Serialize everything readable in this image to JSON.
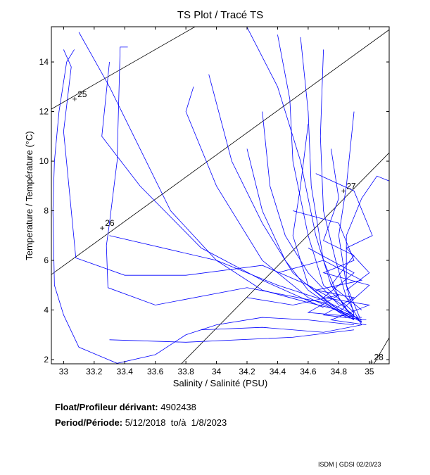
{
  "chart_data": {
    "type": "line",
    "title": "TS Plot / Tracé TS",
    "xlabel": "Salinity / Salinité (PSU)",
    "ylabel": "Temperature / Température (°C)",
    "xlim": [
      32.92,
      35.13
    ],
    "ylim": [
      1.83,
      15.42
    ],
    "xticks": [
      33,
      33.2,
      33.4,
      33.6,
      33.8,
      34,
      34.2,
      34.4,
      34.6,
      34.8,
      35
    ],
    "xtick_labels": [
      "33",
      "33.2",
      "33.4",
      "33.6",
      "33.8",
      "34",
      "34.2",
      "34.4",
      "34.6",
      "34.8",
      "35"
    ],
    "yticks": [
      2,
      4,
      6,
      8,
      10,
      12,
      14
    ],
    "ytick_labels": [
      "2",
      "4",
      "6",
      "8",
      "10",
      "12",
      "14"
    ],
    "grid": false,
    "profile_color": "#0000ff",
    "density_color": "#000000",
    "density_lines": [
      {
        "label": "25",
        "points": [
          [
            32.92,
            12.1
          ],
          [
            33.86,
            15.42
          ]
        ],
        "label_at": [
          33.1,
          12.7
        ]
      },
      {
        "label": "26",
        "points": [
          [
            32.92,
            5.43
          ],
          [
            35.13,
            15.3
          ]
        ],
        "label_at": [
          33.28,
          7.5
        ]
      },
      {
        "label": "27",
        "points": [
          [
            33.77,
            1.83
          ],
          [
            35.13,
            10.34
          ]
        ],
        "label_at": [
          34.86,
          9.0
        ]
      },
      {
        "label": "28",
        "points": [
          [
            35.03,
            1.83
          ],
          [
            35.13,
            2.88
          ]
        ],
        "label_at": [
          35.04,
          2.1
        ]
      }
    ],
    "profiles": [
      [
        [
          33.07,
          14.5
        ],
        [
          33.02,
          14.0
        ],
        [
          32.97,
          12
        ],
        [
          32.94,
          10
        ],
        [
          32.93,
          8
        ],
        [
          32.94,
          5
        ],
        [
          33.0,
          3.8
        ],
        [
          33.1,
          2.5
        ],
        [
          33.35,
          1.85
        ],
        [
          33.6,
          2.2
        ],
        [
          33.8,
          3.0
        ],
        [
          34.0,
          3.4
        ],
        [
          34.3,
          3.7
        ],
        [
          34.6,
          3.6
        ],
        [
          34.9,
          3.4
        ]
      ],
      [
        [
          33.1,
          15.2
        ],
        [
          33.3,
          13
        ],
        [
          33.5,
          10.5
        ],
        [
          33.7,
          8
        ],
        [
          34.0,
          6
        ],
        [
          34.3,
          4.8
        ],
        [
          34.6,
          4.3
        ],
        [
          34.8,
          4.0
        ],
        [
          34.9,
          3.6
        ]
      ],
      [
        [
          33.42,
          14.6
        ],
        [
          33.37,
          14.6
        ],
        [
          33.35,
          10
        ],
        [
          33.3,
          7.5
        ],
        [
          33.28,
          6.6
        ],
        [
          33.29,
          4.9
        ],
        [
          33.6,
          4.2
        ],
        [
          34.2,
          4.9
        ],
        [
          34.7,
          4.3
        ],
        [
          34.9,
          3.6
        ]
      ],
      [
        [
          33.0,
          14.5
        ],
        [
          33.05,
          13.8
        ],
        [
          33.0,
          11.2
        ],
        [
          33.08,
          6.1
        ],
        [
          33.4,
          5.4
        ],
        [
          33.8,
          5.4
        ],
        [
          34.3,
          5.8
        ],
        [
          34.6,
          5.0
        ],
        [
          34.8,
          4.3
        ],
        [
          34.95,
          3.5
        ]
      ],
      [
        [
          33.3,
          7.0
        ],
        [
          34.0,
          6.0
        ],
        [
          34.4,
          5.0
        ],
        [
          34.7,
          4.4
        ],
        [
          34.9,
          3.8
        ]
      ],
      [
        [
          33.3,
          14
        ],
        [
          33.25,
          11
        ],
        [
          33.5,
          9
        ],
        [
          33.9,
          6.5
        ],
        [
          34.3,
          5.2
        ],
        [
          34.7,
          4.1
        ]
      ],
      [
        [
          33.85,
          13
        ],
        [
          33.8,
          12
        ],
        [
          34.0,
          9
        ],
        [
          34.3,
          6
        ],
        [
          34.6,
          4.5
        ],
        [
          34.85,
          3.8
        ]
      ],
      [
        [
          34.2,
          15.4
        ],
        [
          34.4,
          13
        ],
        [
          34.55,
          10
        ],
        [
          34.65,
          7
        ],
        [
          34.75,
          5
        ],
        [
          34.85,
          4
        ],
        [
          34.95,
          3.5
        ]
      ],
      [
        [
          34.55,
          15
        ],
        [
          34.6,
          12
        ],
        [
          34.62,
          9
        ],
        [
          34.7,
          6
        ],
        [
          34.8,
          4.5
        ],
        [
          34.9,
          3.6
        ]
      ],
      [
        [
          34.7,
          14.5
        ],
        [
          34.68,
          11
        ],
        [
          34.7,
          8
        ],
        [
          34.78,
          6
        ],
        [
          34.85,
          4.5
        ],
        [
          34.95,
          3.4
        ]
      ],
      [
        [
          34.9,
          12
        ],
        [
          34.85,
          9
        ],
        [
          34.8,
          7
        ],
        [
          34.85,
          5
        ],
        [
          34.9,
          3.8
        ]
      ],
      [
        [
          35.13,
          9.2
        ],
        [
          35.05,
          9.4
        ],
        [
          34.95,
          8.5
        ],
        [
          34.85,
          7
        ],
        [
          34.85,
          5
        ],
        [
          34.95,
          3.5
        ]
      ],
      [
        [
          34.4,
          15.1
        ],
        [
          34.48,
          12.5
        ],
        [
          34.5,
          10
        ],
        [
          34.6,
          7
        ],
        [
          34.7,
          5
        ],
        [
          34.9,
          3.9
        ]
      ],
      [
        [
          33.9,
          3.2
        ],
        [
          34.3,
          3.3
        ],
        [
          34.7,
          3.1
        ],
        [
          34.95,
          3.4
        ]
      ],
      [
        [
          33.3,
          2.8
        ],
        [
          33.8,
          2.7
        ],
        [
          34.5,
          2.9
        ],
        [
          34.9,
          3.2
        ]
      ],
      [
        [
          34.6,
          11.5
        ],
        [
          34.55,
          9
        ],
        [
          34.5,
          7
        ],
        [
          34.6,
          5
        ],
        [
          34.8,
          4
        ],
        [
          34.95,
          3.6
        ]
      ],
      [
        [
          34.2,
          10.5
        ],
        [
          34.3,
          8
        ],
        [
          34.45,
          6
        ],
        [
          34.6,
          4.8
        ],
        [
          34.85,
          3.7
        ]
      ],
      [
        [
          34.3,
          12
        ],
        [
          34.35,
          9
        ],
        [
          34.45,
          7
        ],
        [
          34.6,
          5.5
        ],
        [
          34.8,
          4.2
        ]
      ],
      [
        [
          33.95,
          13.5
        ],
        [
          34.1,
          10
        ],
        [
          34.3,
          7.5
        ],
        [
          34.5,
          5.5
        ],
        [
          34.75,
          4.2
        ],
        [
          34.95,
          3.5
        ]
      ],
      [
        [
          34.6,
          6.5
        ],
        [
          34.9,
          5.5
        ],
        [
          34.7,
          4.5
        ],
        [
          35.0,
          4.2
        ],
        [
          34.75,
          3.6
        ],
        [
          34.98,
          3.4
        ]
      ],
      [
        [
          34.5,
          8
        ],
        [
          34.8,
          7.5
        ],
        [
          34.9,
          6
        ],
        [
          34.7,
          5.5
        ],
        [
          35.0,
          5
        ],
        [
          34.8,
          3.9
        ]
      ],
      [
        [
          34.4,
          5.5
        ],
        [
          34.7,
          6
        ],
        [
          34.95,
          5.2
        ],
        [
          34.65,
          4.8
        ],
        [
          34.9,
          4.5
        ],
        [
          34.7,
          3.8
        ],
        [
          34.98,
          3.6
        ]
      ],
      [
        [
          34.75,
          10.5
        ],
        [
          34.8,
          8.5
        ],
        [
          34.7,
          6.8
        ],
        [
          34.9,
          6.2
        ],
        [
          34.75,
          5
        ],
        [
          34.95,
          4.0
        ]
      ],
      [
        [
          34.2,
          4.5
        ],
        [
          34.5,
          4.2
        ],
        [
          34.8,
          4.6
        ],
        [
          34.6,
          3.9
        ],
        [
          34.95,
          3.7
        ]
      ],
      [
        [
          34.65,
          9.5
        ],
        [
          34.9,
          8.8
        ],
        [
          35.02,
          7
        ],
        [
          34.85,
          6.5
        ],
        [
          35.0,
          5.5
        ],
        [
          34.85,
          4.8
        ]
      ]
    ]
  },
  "info": {
    "float_label": "Float/Profileur dérivant:",
    "float_id": "4902438",
    "period_label": "Period/Période:",
    "period_value": "5/12/2018  to/à  1/8/2023",
    "credit": "ISDM | GDSI  02/20/23"
  }
}
